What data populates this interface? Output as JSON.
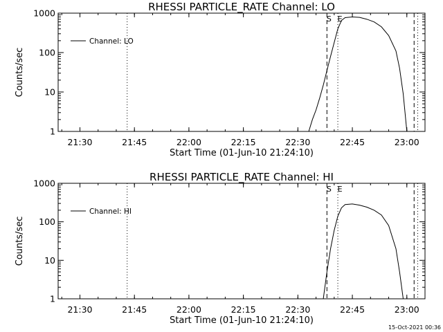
{
  "chart_data": [
    {
      "type": "line",
      "title": "RHESSI PARTICLE_RATE Channel: LO",
      "xlabel": "Start Time (01-Jun-10 21:24:10)",
      "ylabel": "Counts/sec",
      "xlim": [
        "21:24",
        "23:05"
      ],
      "ylim": [
        1,
        1000
      ],
      "yscale": "log",
      "grid": false,
      "x_ticks": [
        "21:30",
        "21:45",
        "22:00",
        "22:15",
        "22:30",
        "22:45",
        "23:00"
      ],
      "y_ticks": [
        "1",
        "10",
        "100",
        "1000"
      ],
      "legend": {
        "position": "top-left",
        "entries": [
          "Channel: LO"
        ]
      },
      "vlines": [
        {
          "x": "21:43",
          "style": "dotted",
          "label": ""
        },
        {
          "x": "22:38",
          "style": "dashed",
          "label": "S"
        },
        {
          "x": "22:41",
          "style": "dotted",
          "label": "E"
        },
        {
          "x": "23:02",
          "style": "dashed",
          "label": ""
        },
        {
          "x": "23:03",
          "style": "dotted",
          "label": ""
        }
      ],
      "series": [
        {
          "name": "Channel: LO",
          "x": [
            "22:33",
            "22:34",
            "22:35",
            "22:36",
            "22:37",
            "22:38",
            "22:39",
            "22:40",
            "22:41",
            "22:42",
            "22:43",
            "22:45",
            "22:47",
            "22:49",
            "22:51",
            "22:53",
            "22:55",
            "22:57",
            "22:58",
            "22:59",
            "23:00"
          ],
          "y": [
            1,
            2,
            3.5,
            7,
            15,
            35,
            80,
            180,
            400,
            650,
            770,
            800,
            780,
            700,
            600,
            450,
            270,
            110,
            40,
            9,
            1
          ]
        }
      ]
    },
    {
      "type": "line",
      "title": "RHESSI PARTICLE_RATE Channel: HI",
      "xlabel": "Start Time (01-Jun-10 21:24:10)",
      "ylabel": "Counts/sec",
      "xlim": [
        "21:24",
        "23:05"
      ],
      "ylim": [
        1,
        1000
      ],
      "yscale": "log",
      "grid": false,
      "x_ticks": [
        "21:30",
        "21:45",
        "22:00",
        "22:15",
        "22:30",
        "22:45",
        "23:00"
      ],
      "y_ticks": [
        "1",
        "10",
        "100",
        "1000"
      ],
      "legend": {
        "position": "top-left",
        "entries": [
          "Channel: HI"
        ]
      },
      "vlines": [
        {
          "x": "21:43",
          "style": "dotted",
          "label": ""
        },
        {
          "x": "22:38",
          "style": "dashed",
          "label": "S"
        },
        {
          "x": "22:41",
          "style": "dotted",
          "label": "E"
        },
        {
          "x": "23:02",
          "style": "dashed",
          "label": ""
        },
        {
          "x": "23:03",
          "style": "dotted",
          "label": ""
        }
      ],
      "series": [
        {
          "name": "Channel: HI",
          "x": [
            "22:37",
            "22:38",
            "22:39",
            "22:40",
            "22:41",
            "22:42",
            "22:43",
            "22:45",
            "22:47",
            "22:49",
            "22:51",
            "22:53",
            "22:55",
            "22:57",
            "22:58",
            "22:59"
          ],
          "y": [
            1,
            5,
            20,
            60,
            140,
            230,
            280,
            290,
            270,
            240,
            200,
            150,
            80,
            20,
            5,
            1
          ]
        }
      ]
    }
  ],
  "footer": {
    "timestamp": "15-Oct-2021 00:36"
  }
}
